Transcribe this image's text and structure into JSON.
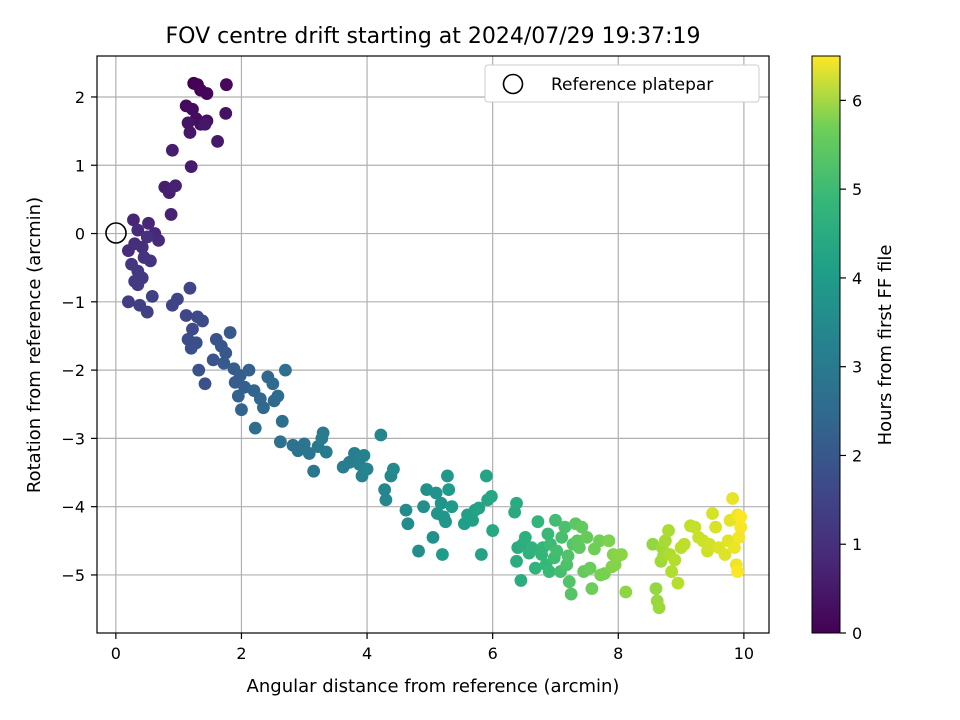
{
  "chart_data": {
    "type": "scatter",
    "title": "FOV centre drift starting at 2024/07/29 19:37:19",
    "xlabel": "Angular distance from reference (arcmin)",
    "ylabel": "Rotation from reference (arcmin)",
    "xlim": [
      -0.3,
      10.4
    ],
    "ylim": [
      -5.85,
      2.6
    ],
    "xticks": [
      0,
      2,
      4,
      6,
      8,
      10
    ],
    "yticks": [
      -5,
      -4,
      -3,
      -2,
      -1,
      0,
      1,
      2
    ],
    "grid": true,
    "legend": {
      "placement": "top-right",
      "entries": [
        "Reference platepar"
      ]
    },
    "reference_point": {
      "name": "Reference platepar",
      "x": 0,
      "y": 0
    },
    "colorbar": {
      "label": "Hours from first FF file",
      "range": [
        0,
        6.5
      ],
      "ticks": [
        0,
        1,
        2,
        3,
        4,
        5,
        6
      ],
      "colormap": "viridis"
    },
    "series": [
      {
        "points": [
          [
            1.24,
            2.2
          ],
          [
            1.3,
            2.18
          ],
          [
            1.35,
            2.1
          ],
          [
            1.45,
            2.05
          ],
          [
            1.76,
            2.18
          ],
          [
            1.12,
            1.87
          ],
          [
            1.22,
            1.82
          ],
          [
            1.28,
            1.68
          ],
          [
            1.35,
            1.6
          ],
          [
            1.45,
            1.65
          ],
          [
            1.75,
            1.76
          ],
          [
            1.15,
            1.62
          ],
          [
            1.18,
            1.48
          ],
          [
            1.42,
            1.6
          ],
          [
            1.62,
            1.35
          ],
          [
            1.2,
            0.98
          ],
          [
            0.9,
            1.22
          ],
          [
            0.78,
            0.68
          ],
          [
            0.85,
            0.6
          ],
          [
            0.95,
            0.7
          ],
          [
            0.88,
            0.28
          ],
          [
            0.28,
            0.2
          ],
          [
            0.52,
            0.15
          ],
          [
            0.62,
            0.0
          ],
          [
            0.68,
            -0.1
          ],
          [
            0.35,
            0.05
          ],
          [
            0.2,
            -0.25
          ],
          [
            0.3,
            -0.15
          ],
          [
            0.42,
            -0.2
          ],
          [
            0.5,
            -0.05
          ],
          [
            0.45,
            -0.35
          ],
          [
            0.55,
            -0.4
          ],
          [
            0.25,
            -0.45
          ],
          [
            0.35,
            -0.55
          ],
          [
            0.42,
            -0.65
          ],
          [
            0.3,
            -0.7
          ],
          [
            0.35,
            -0.75
          ],
          [
            0.2,
            -1.0
          ],
          [
            0.38,
            -1.05
          ],
          [
            0.5,
            -1.15
          ],
          [
            0.58,
            -0.92
          ],
          [
            0.9,
            -1.05
          ],
          [
            0.98,
            -0.96
          ],
          [
            1.18,
            -0.8
          ],
          [
            1.12,
            -1.2
          ],
          [
            1.3,
            -1.22
          ],
          [
            1.22,
            -1.4
          ],
          [
            1.38,
            -1.28
          ],
          [
            1.15,
            -1.55
          ],
          [
            1.28,
            -1.6
          ],
          [
            1.2,
            -1.68
          ],
          [
            1.32,
            -2.0
          ],
          [
            1.42,
            -2.2
          ],
          [
            1.6,
            -1.55
          ],
          [
            1.55,
            -1.85
          ],
          [
            1.68,
            -1.65
          ],
          [
            1.75,
            -1.75
          ],
          [
            1.82,
            -1.45
          ],
          [
            1.72,
            -1.9
          ],
          [
            1.88,
            -1.98
          ],
          [
            1.9,
            -2.18
          ],
          [
            1.98,
            -2.08
          ],
          [
            2.05,
            -2.25
          ],
          [
            2.12,
            -2.0
          ],
          [
            1.95,
            -2.38
          ],
          [
            2.0,
            -2.58
          ],
          [
            2.2,
            -2.3
          ],
          [
            2.3,
            -2.42
          ],
          [
            2.35,
            -2.55
          ],
          [
            2.42,
            -2.1
          ],
          [
            2.5,
            -2.2
          ],
          [
            2.52,
            -2.45
          ],
          [
            2.58,
            -2.38
          ],
          [
            2.22,
            -2.85
          ],
          [
            2.65,
            -2.75
          ],
          [
            2.7,
            -2.0
          ],
          [
            2.62,
            -3.05
          ],
          [
            2.82,
            -3.1
          ],
          [
            2.9,
            -3.18
          ],
          [
            3.0,
            -3.08
          ],
          [
            3.08,
            -3.22
          ],
          [
            3.15,
            -3.48
          ],
          [
            3.22,
            -3.12
          ],
          [
            3.3,
            -2.92
          ],
          [
            3.35,
            -3.2
          ],
          [
            3.28,
            -3.0
          ],
          [
            3.62,
            -3.42
          ],
          [
            3.72,
            -3.35
          ],
          [
            3.8,
            -3.22
          ],
          [
            3.88,
            -3.38
          ],
          [
            3.95,
            -3.25
          ],
          [
            3.92,
            -3.55
          ],
          [
            4.0,
            -3.45
          ],
          [
            4.22,
            -2.95
          ],
          [
            4.28,
            -3.75
          ],
          [
            4.3,
            -3.9
          ],
          [
            4.38,
            -3.55
          ],
          [
            4.42,
            -3.45
          ],
          [
            4.62,
            -4.05
          ],
          [
            4.65,
            -4.25
          ],
          [
            4.82,
            -4.65
          ],
          [
            4.9,
            -4.0
          ],
          [
            4.95,
            -3.75
          ],
          [
            5.05,
            -4.45
          ],
          [
            5.1,
            -3.8
          ],
          [
            5.12,
            -4.1
          ],
          [
            5.18,
            -3.95
          ],
          [
            5.22,
            -4.15
          ],
          [
            5.25,
            -4.22
          ],
          [
            5.28,
            -3.55
          ],
          [
            5.3,
            -3.75
          ],
          [
            5.35,
            -4.0
          ],
          [
            5.2,
            -4.7
          ],
          [
            5.55,
            -4.25
          ],
          [
            5.6,
            -4.12
          ],
          [
            5.68,
            -4.2
          ],
          [
            5.72,
            -4.05
          ],
          [
            5.78,
            -4.02
          ],
          [
            5.82,
            -4.7
          ],
          [
            5.9,
            -3.55
          ],
          [
            5.92,
            -3.9
          ],
          [
            5.98,
            -3.85
          ],
          [
            6.0,
            -4.35
          ],
          [
            6.35,
            -4.08
          ],
          [
            6.38,
            -3.95
          ],
          [
            6.4,
            -4.6
          ],
          [
            6.38,
            -4.8
          ],
          [
            6.45,
            -5.08
          ],
          [
            6.48,
            -4.55
          ],
          [
            6.52,
            -4.45
          ],
          [
            6.58,
            -4.68
          ],
          [
            6.62,
            -4.6
          ],
          [
            6.68,
            -4.9
          ],
          [
            6.72,
            -4.22
          ],
          [
            6.78,
            -4.7
          ],
          [
            6.8,
            -4.6
          ],
          [
            6.85,
            -4.85
          ],
          [
            6.88,
            -4.4
          ],
          [
            6.9,
            -4.95
          ],
          [
            6.92,
            -4.55
          ],
          [
            6.98,
            -4.75
          ],
          [
            7.0,
            -4.2
          ],
          [
            7.02,
            -4.65
          ],
          [
            7.08,
            -4.95
          ],
          [
            7.1,
            -4.45
          ],
          [
            7.15,
            -4.3
          ],
          [
            7.18,
            -4.85
          ],
          [
            7.2,
            -4.72
          ],
          [
            7.22,
            -5.1
          ],
          [
            7.25,
            -5.28
          ],
          [
            7.28,
            -4.55
          ],
          [
            7.32,
            -4.25
          ],
          [
            7.35,
            -4.5
          ],
          [
            7.38,
            -4.6
          ],
          [
            7.42,
            -4.3
          ],
          [
            7.45,
            -4.95
          ],
          [
            7.5,
            -4.45
          ],
          [
            7.55,
            -4.9
          ],
          [
            7.58,
            -5.2
          ],
          [
            7.62,
            -4.62
          ],
          [
            7.7,
            -4.5
          ],
          [
            7.72,
            -5.0
          ],
          [
            7.78,
            -4.98
          ],
          [
            7.85,
            -4.5
          ],
          [
            7.9,
            -4.88
          ],
          [
            7.92,
            -4.7
          ],
          [
            7.95,
            -4.85
          ],
          [
            8.0,
            -4.72
          ],
          [
            8.05,
            -4.7
          ],
          [
            8.12,
            -5.25
          ],
          [
            8.55,
            -4.55
          ],
          [
            8.6,
            -5.2
          ],
          [
            8.62,
            -5.38
          ],
          [
            8.65,
            -5.48
          ],
          [
            8.68,
            -4.8
          ],
          [
            8.7,
            -4.6
          ],
          [
            8.72,
            -4.72
          ],
          [
            8.75,
            -4.5
          ],
          [
            8.8,
            -4.35
          ],
          [
            8.82,
            -4.7
          ],
          [
            8.85,
            -4.95
          ],
          [
            8.9,
            -4.78
          ],
          [
            8.95,
            -5.12
          ],
          [
            9.0,
            -4.6
          ],
          [
            9.05,
            -4.55
          ],
          [
            9.15,
            -4.28
          ],
          [
            9.22,
            -4.3
          ],
          [
            9.28,
            -4.45
          ],
          [
            9.35,
            -4.5
          ],
          [
            9.42,
            -4.65
          ],
          [
            9.45,
            -4.55
          ],
          [
            9.5,
            -4.1
          ],
          [
            9.55,
            -4.3
          ],
          [
            9.6,
            -4.6
          ],
          [
            9.7,
            -4.7
          ],
          [
            9.75,
            -4.5
          ],
          [
            9.78,
            -4.2
          ],
          [
            9.82,
            -3.88
          ],
          [
            9.85,
            -4.6
          ],
          [
            9.88,
            -4.85
          ],
          [
            9.9,
            -4.12
          ],
          [
            9.92,
            -4.45
          ],
          [
            9.95,
            -4.3
          ],
          [
            9.9,
            -4.95
          ],
          [
            9.95,
            -4.15
          ]
        ]
      }
    ]
  }
}
